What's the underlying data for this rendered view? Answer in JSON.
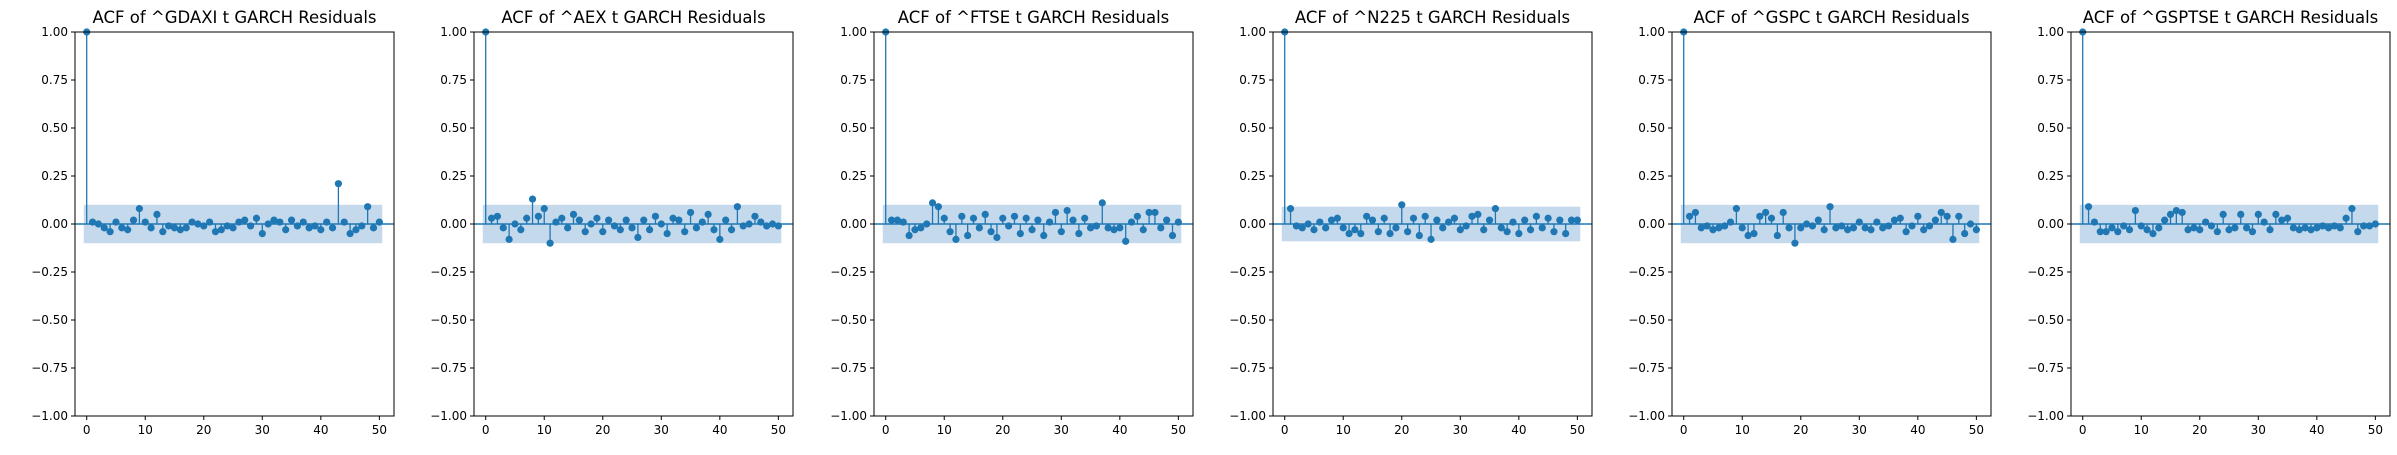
{
  "figure": {
    "colors": {
      "stem": "#1f77b4",
      "band": "#c5d9ec",
      "axis": "#000000",
      "background": "#ffffff"
    }
  },
  "chart_data": [
    {
      "type": "stem",
      "title": "ACF of ^GDAXI t GARCH Residuals",
      "xlabel": "",
      "ylabel": "",
      "xlim": [
        -2,
        52.5
      ],
      "ylim": [
        -1,
        1
      ],
      "xticks": [
        "0",
        "10",
        "20",
        "30",
        "40",
        "50"
      ],
      "yticks": [
        "−1.00",
        "−0.75",
        "−0.50",
        "−0.25",
        "0.00",
        "0.25",
        "0.50",
        "0.75",
        "1.00"
      ],
      "confidence_band": 0.1,
      "lags": [
        0,
        1,
        2,
        3,
        4,
        5,
        6,
        7,
        8,
        9,
        10,
        11,
        12,
        13,
        14,
        15,
        16,
        17,
        18,
        19,
        20,
        21,
        22,
        23,
        24,
        25,
        26,
        27,
        28,
        29,
        30,
        31,
        32,
        33,
        34,
        35,
        36,
        37,
        38,
        39,
        40,
        41,
        42,
        43,
        44,
        45,
        46,
        47,
        48,
        49,
        50
      ],
      "values": [
        1.0,
        0.01,
        0.0,
        -0.02,
        -0.04,
        0.01,
        -0.02,
        -0.03,
        0.02,
        0.08,
        0.01,
        -0.02,
        0.05,
        -0.04,
        -0.01,
        -0.02,
        -0.03,
        -0.02,
        0.01,
        0.0,
        -0.01,
        0.01,
        -0.04,
        -0.03,
        -0.01,
        -0.02,
        0.01,
        0.02,
        -0.01,
        0.03,
        -0.05,
        0.0,
        0.02,
        0.01,
        -0.03,
        0.02,
        -0.01,
        0.01,
        -0.02,
        -0.01,
        -0.03,
        0.01,
        -0.02,
        0.21,
        0.01,
        -0.05,
        -0.03,
        -0.01,
        0.09,
        -0.02,
        0.01
      ]
    },
    {
      "type": "stem",
      "title": "ACF of ^AEX t GARCH Residuals",
      "xlabel": "",
      "ylabel": "",
      "xlim": [
        -2,
        52.5
      ],
      "ylim": [
        -1,
        1
      ],
      "xticks": [
        "0",
        "10",
        "20",
        "30",
        "40",
        "50"
      ],
      "yticks": [
        "−1.00",
        "−0.75",
        "−0.50",
        "−0.25",
        "0.00",
        "0.25",
        "0.50",
        "0.75",
        "1.00"
      ],
      "confidence_band": 0.1,
      "lags": [
        0,
        1,
        2,
        3,
        4,
        5,
        6,
        7,
        8,
        9,
        10,
        11,
        12,
        13,
        14,
        15,
        16,
        17,
        18,
        19,
        20,
        21,
        22,
        23,
        24,
        25,
        26,
        27,
        28,
        29,
        30,
        31,
        32,
        33,
        34,
        35,
        36,
        37,
        38,
        39,
        40,
        41,
        42,
        43,
        44,
        45,
        46,
        47,
        48,
        49,
        50
      ],
      "values": [
        1.0,
        0.03,
        0.04,
        -0.02,
        -0.08,
        0.0,
        -0.03,
        0.03,
        0.13,
        0.04,
        0.08,
        -0.1,
        0.01,
        0.03,
        -0.02,
        0.05,
        0.02,
        -0.04,
        0.0,
        0.03,
        -0.04,
        0.02,
        -0.01,
        -0.03,
        0.02,
        -0.02,
        -0.07,
        0.02,
        -0.03,
        0.04,
        0.0,
        -0.05,
        0.03,
        0.02,
        -0.04,
        0.06,
        -0.02,
        0.01,
        0.05,
        -0.03,
        -0.08,
        0.02,
        -0.03,
        0.09,
        -0.01,
        0.0,
        0.04,
        0.01,
        -0.01,
        0.0,
        -0.01
      ]
    },
    {
      "type": "stem",
      "title": "ACF of ^FTSE t GARCH Residuals",
      "xlabel": "",
      "ylabel": "",
      "xlim": [
        -2,
        52.5
      ],
      "ylim": [
        -1,
        1
      ],
      "xticks": [
        "0",
        "10",
        "20",
        "30",
        "40",
        "50"
      ],
      "yticks": [
        "−1.00",
        "−0.75",
        "−0.50",
        "−0.25",
        "0.00",
        "0.25",
        "0.50",
        "0.75",
        "1.00"
      ],
      "confidence_band": 0.1,
      "lags": [
        0,
        1,
        2,
        3,
        4,
        5,
        6,
        7,
        8,
        9,
        10,
        11,
        12,
        13,
        14,
        15,
        16,
        17,
        18,
        19,
        20,
        21,
        22,
        23,
        24,
        25,
        26,
        27,
        28,
        29,
        30,
        31,
        32,
        33,
        34,
        35,
        36,
        37,
        38,
        39,
        40,
        41,
        42,
        43,
        44,
        45,
        46,
        47,
        48,
        49,
        50
      ],
      "values": [
        1.0,
        0.02,
        0.02,
        0.01,
        -0.06,
        -0.03,
        -0.02,
        0.0,
        0.11,
        0.09,
        0.03,
        -0.04,
        -0.08,
        0.04,
        -0.06,
        0.03,
        -0.02,
        0.05,
        -0.04,
        -0.07,
        0.03,
        -0.01,
        0.04,
        -0.05,
        0.03,
        -0.03,
        0.02,
        -0.06,
        0.01,
        0.06,
        -0.04,
        0.07,
        0.02,
        -0.05,
        0.03,
        -0.02,
        -0.01,
        0.11,
        -0.02,
        -0.03,
        -0.02,
        -0.09,
        0.01,
        0.04,
        -0.03,
        0.06,
        0.06,
        -0.02,
        0.02,
        -0.06,
        0.01
      ]
    },
    {
      "type": "stem",
      "title": "ACF of ^N225 t GARCH Residuals",
      "xlabel": "",
      "ylabel": "",
      "xlim": [
        -2,
        52.5
      ],
      "ylim": [
        -1,
        1
      ],
      "xticks": [
        "0",
        "10",
        "20",
        "30",
        "40",
        "50"
      ],
      "yticks": [
        "−1.00",
        "−0.75",
        "−0.50",
        "−0.25",
        "0.00",
        "0.25",
        "0.50",
        "0.75",
        "1.00"
      ],
      "confidence_band": 0.09,
      "lags": [
        0,
        1,
        2,
        3,
        4,
        5,
        6,
        7,
        8,
        9,
        10,
        11,
        12,
        13,
        14,
        15,
        16,
        17,
        18,
        19,
        20,
        21,
        22,
        23,
        24,
        25,
        26,
        27,
        28,
        29,
        30,
        31,
        32,
        33,
        34,
        35,
        36,
        37,
        38,
        39,
        40,
        41,
        42,
        43,
        44,
        45,
        46,
        47,
        48,
        49,
        50
      ],
      "values": [
        1.0,
        0.08,
        -0.01,
        -0.02,
        0.0,
        -0.03,
        0.01,
        -0.02,
        0.02,
        0.03,
        -0.02,
        -0.05,
        -0.03,
        -0.05,
        0.04,
        0.02,
        -0.04,
        0.03,
        -0.05,
        -0.02,
        0.1,
        -0.04,
        0.03,
        -0.06,
        0.04,
        -0.08,
        0.02,
        -0.02,
        0.01,
        0.03,
        -0.03,
        -0.01,
        0.04,
        0.05,
        -0.03,
        0.02,
        0.08,
        -0.02,
        -0.04,
        0.01,
        -0.05,
        0.02,
        -0.03,
        0.04,
        -0.02,
        0.03,
        -0.04,
        0.02,
        -0.05,
        0.02,
        0.02
      ]
    },
    {
      "type": "stem",
      "title": "ACF of ^GSPC t GARCH Residuals",
      "xlabel": "",
      "ylabel": "",
      "xlim": [
        -2,
        52.5
      ],
      "ylim": [
        -1,
        1
      ],
      "xticks": [
        "0",
        "10",
        "20",
        "30",
        "40",
        "50"
      ],
      "yticks": [
        "−1.00",
        "−0.75",
        "−0.50",
        "−0.25",
        "0.00",
        "0.25",
        "0.50",
        "0.75",
        "1.00"
      ],
      "confidence_band": 0.1,
      "lags": [
        0,
        1,
        2,
        3,
        4,
        5,
        6,
        7,
        8,
        9,
        10,
        11,
        12,
        13,
        14,
        15,
        16,
        17,
        18,
        19,
        20,
        21,
        22,
        23,
        24,
        25,
        26,
        27,
        28,
        29,
        30,
        31,
        32,
        33,
        34,
        35,
        36,
        37,
        38,
        39,
        40,
        41,
        42,
        43,
        44,
        45,
        46,
        47,
        48,
        49,
        50
      ],
      "values": [
        1.0,
        0.04,
        0.06,
        -0.02,
        -0.01,
        -0.03,
        -0.02,
        -0.01,
        0.01,
        0.08,
        -0.02,
        -0.06,
        -0.05,
        0.04,
        0.06,
        0.03,
        -0.06,
        0.06,
        -0.02,
        -0.1,
        -0.02,
        0.0,
        -0.01,
        0.02,
        -0.03,
        0.09,
        -0.02,
        -0.01,
        -0.03,
        -0.02,
        0.01,
        -0.02,
        -0.03,
        0.01,
        -0.02,
        -0.01,
        0.02,
        0.03,
        -0.04,
        -0.01,
        0.04,
        -0.03,
        -0.01,
        0.02,
        0.06,
        0.04,
        -0.08,
        0.04,
        -0.05,
        0.0,
        -0.03
      ]
    },
    {
      "type": "stem",
      "title": "ACF of ^GSPTSE t GARCH Residuals",
      "xlabel": "",
      "ylabel": "",
      "xlim": [
        -2,
        52.5
      ],
      "ylim": [
        -1,
        1
      ],
      "xticks": [
        "0",
        "10",
        "20",
        "30",
        "40",
        "50"
      ],
      "yticks": [
        "−1.00",
        "−0.75",
        "−0.50",
        "−0.25",
        "0.00",
        "0.25",
        "0.50",
        "0.75",
        "1.00"
      ],
      "confidence_band": 0.1,
      "lags": [
        0,
        1,
        2,
        3,
        4,
        5,
        6,
        7,
        8,
        9,
        10,
        11,
        12,
        13,
        14,
        15,
        16,
        17,
        18,
        19,
        20,
        21,
        22,
        23,
        24,
        25,
        26,
        27,
        28,
        29,
        30,
        31,
        32,
        33,
        34,
        35,
        36,
        37,
        38,
        39,
        40,
        41,
        42,
        43,
        44,
        45,
        46,
        47,
        48,
        49,
        50
      ],
      "values": [
        1.0,
        0.09,
        0.01,
        -0.04,
        -0.04,
        -0.02,
        -0.04,
        -0.01,
        -0.03,
        0.07,
        -0.01,
        -0.03,
        -0.05,
        -0.02,
        0.02,
        0.05,
        0.07,
        0.06,
        -0.03,
        -0.02,
        -0.03,
        0.01,
        -0.01,
        -0.04,
        0.05,
        -0.03,
        -0.02,
        0.05,
        -0.02,
        -0.04,
        0.05,
        0.01,
        -0.03,
        0.05,
        0.02,
        0.03,
        -0.02,
        -0.03,
        -0.02,
        -0.03,
        -0.02,
        -0.01,
        -0.02,
        -0.01,
        -0.02,
        0.03,
        0.08,
        -0.04,
        -0.01,
        -0.01,
        0.0
      ]
    }
  ]
}
